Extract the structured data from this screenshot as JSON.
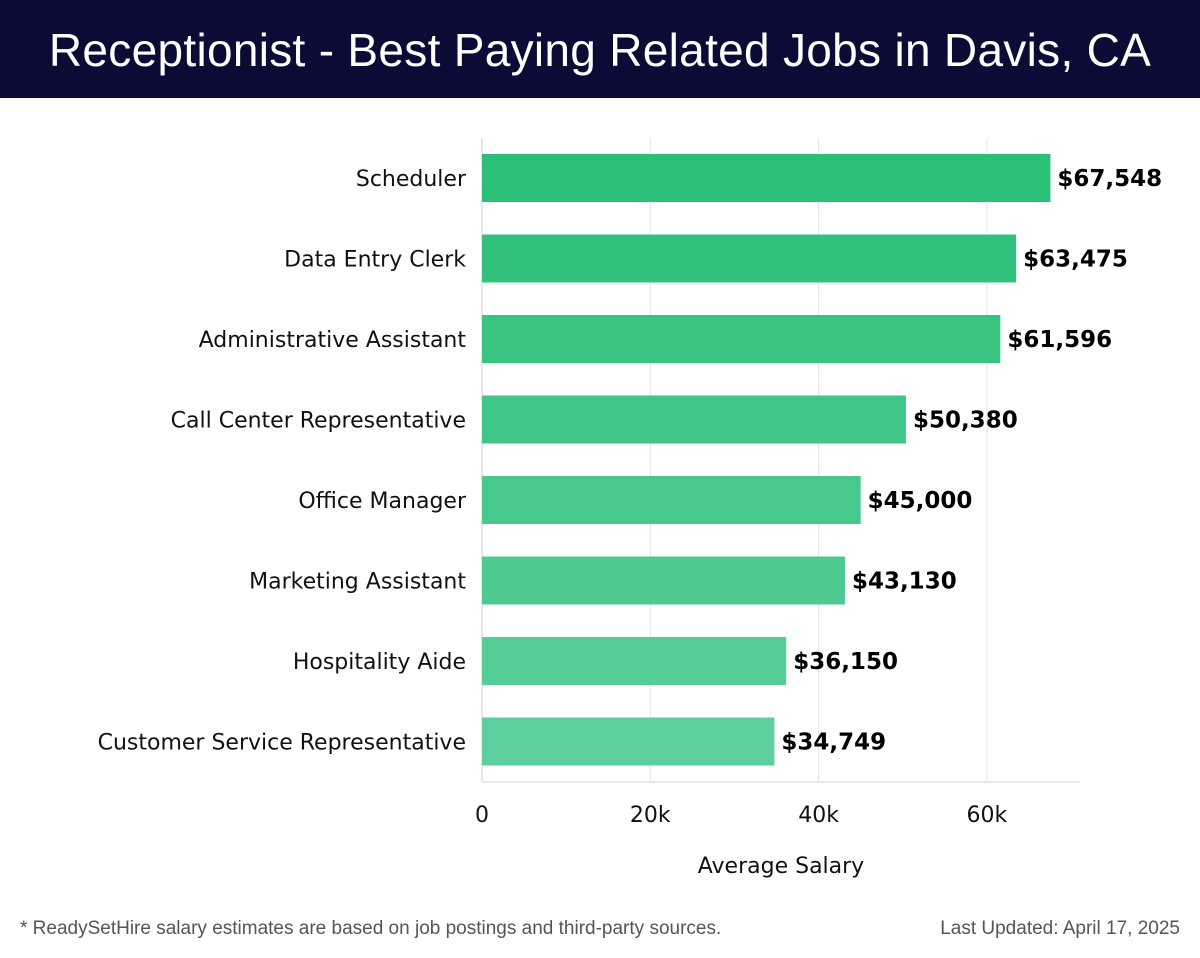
{
  "header": {
    "title": "Receptionist - Best Paying Related Jobs in Davis, CA"
  },
  "chart_data": {
    "type": "bar",
    "orientation": "horizontal",
    "categories": [
      "Scheduler",
      "Data Entry Clerk",
      "Administrative Assistant",
      "Call Center Representative",
      "Office Manager",
      "Marketing Assistant",
      "Hospitality Aide",
      "Customer Service Representative"
    ],
    "values": [
      67548,
      63475,
      61596,
      50380,
      45000,
      43130,
      36150,
      34749
    ],
    "value_labels": [
      "$67,548",
      "$63,475",
      "$61,596",
      "$50,380",
      "$45,000",
      "$43,130",
      "$36,150",
      "$34,749"
    ],
    "xlabel": "Average Salary",
    "ylabel": "",
    "xlim": [
      0,
      71000
    ],
    "xticks": [
      0,
      20000,
      40000,
      60000
    ],
    "xtick_labels": [
      "0",
      "20k",
      "40k",
      "60k"
    ],
    "grid": true,
    "colors": {
      "bar_top": "#2bbf77",
      "bar_bottom": "#5ccf9c",
      "header_bg": "#0b0c35"
    }
  },
  "footer": {
    "footnote": "* ReadySetHire salary estimates are based on job postings and third-party sources.",
    "updated": "Last Updated: April 17, 2025"
  }
}
